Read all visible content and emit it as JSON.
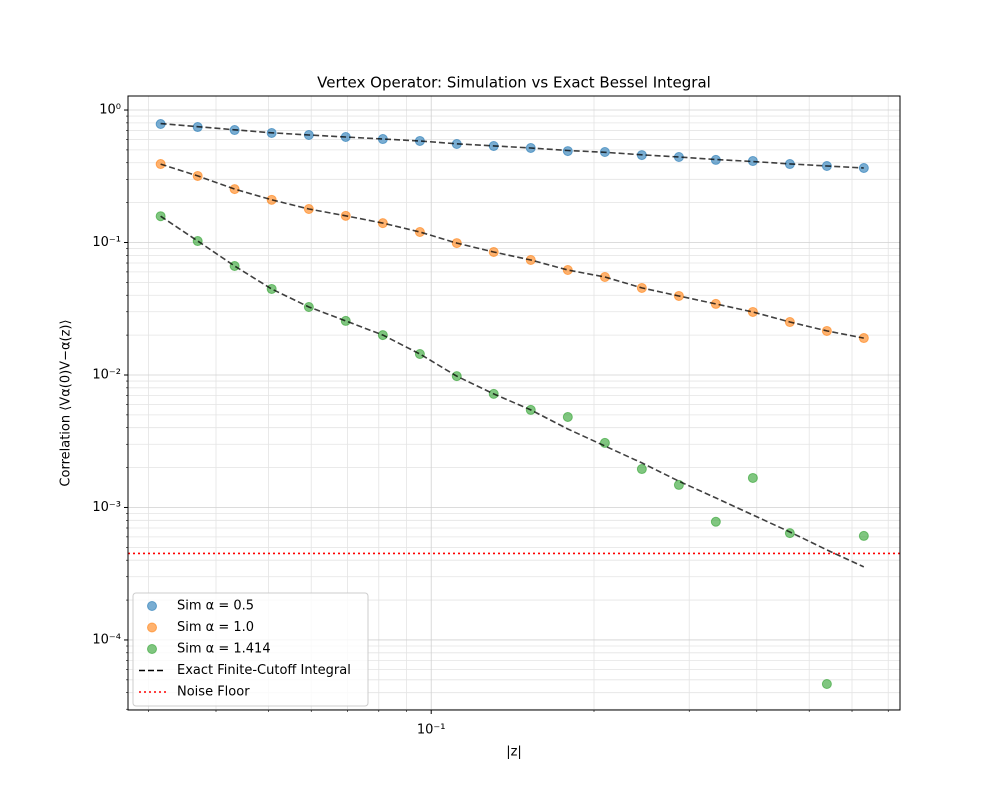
{
  "chart_data": {
    "type": "scatter",
    "title": "Vertex Operator: Simulation vs Exact Bessel Integral",
    "xlabel": "|z|",
    "ylabel": "Correlation ⟨Vα(0)V−α(z)⟩",
    "xscale": "log",
    "yscale": "log",
    "grid": true,
    "legend": "lower left",
    "xlim": [
      0.0275,
      0.736
    ],
    "ylim": [
      2.96e-05,
      1.276
    ],
    "xticks": [
      {
        "value": 0.1,
        "label": "10⁻¹"
      }
    ],
    "yticks": [
      {
        "value": 0.0001,
        "label": "10⁻⁴"
      },
      {
        "value": 0.001,
        "label": "10⁻³"
      },
      {
        "value": 0.01,
        "label": "10⁻²"
      },
      {
        "value": 0.1,
        "label": "10⁻¹"
      },
      {
        "value": 1,
        "label": "10⁰"
      }
    ],
    "xminorticks": [
      0.03,
      0.04,
      0.05,
      0.06,
      0.07,
      0.08,
      0.09,
      0.2,
      0.3,
      0.4,
      0.5,
      0.6,
      0.7
    ],
    "yminorticks": [
      3e-05,
      4e-05,
      5e-05,
      6e-05,
      7e-05,
      8e-05,
      9e-05,
      0.0002,
      0.0003,
      0.0004,
      0.0005,
      0.0006,
      0.0007,
      0.0008,
      0.0009,
      0.002,
      0.003,
      0.004,
      0.005,
      0.006,
      0.007,
      0.008,
      0.009,
      0.02,
      0.03,
      0.04,
      0.05,
      0.06,
      0.07,
      0.08,
      0.09,
      0.2,
      0.3,
      0.4,
      0.5,
      0.6,
      0.7,
      0.8,
      0.9
    ],
    "x": [
      0.0316,
      0.037,
      0.0433,
      0.0507,
      0.0594,
      0.0695,
      0.0814,
      0.0953,
      0.1115,
      0.1305,
      0.1528,
      0.1789,
      0.2095,
      0.2452,
      0.2871,
      0.336,
      0.3934,
      0.4605,
      0.5391,
      0.631
    ],
    "series": [
      {
        "name": "Sim α = 0.5",
        "color": "#1f77b4",
        "values": [
          0.784,
          0.744,
          0.706,
          0.671,
          0.648,
          0.626,
          0.604,
          0.584,
          0.554,
          0.535,
          0.517,
          0.49,
          0.482,
          0.457,
          0.442,
          0.42,
          0.412,
          0.391,
          0.378,
          0.365
        ]
      },
      {
        "name": "Sim α = 1.0",
        "color": "#ff7f0e",
        "values": [
          0.391,
          0.318,
          0.253,
          0.21,
          0.179,
          0.159,
          0.14,
          0.12,
          0.099,
          0.0848,
          0.0738,
          0.062,
          0.0549,
          0.0454,
          0.0395,
          0.0344,
          0.0299,
          0.0251,
          0.0215,
          0.019
        ]
      },
      {
        "name": "Sim α = 1.414",
        "color": "#2ca02c",
        "values": [
          0.158,
          0.1026,
          0.0665,
          0.0446,
          0.0326,
          0.0256,
          0.02,
          0.0144,
          0.0098,
          0.0072,
          0.00545,
          0.00482,
          0.00307,
          0.00195,
          0.00148,
          0.00078,
          0.00167,
          0.00064,
          4.65e-05,
          0.00061
        ]
      }
    ],
    "exact": {
      "name": "Exact Finite-Cutoff Integral",
      "color": "#000000",
      "lines": [
        [
          0.79,
          0.748,
          0.709,
          0.673,
          0.648,
          0.626,
          0.604,
          0.584,
          0.556,
          0.536,
          0.517,
          0.495,
          0.48,
          0.459,
          0.442,
          0.423,
          0.409,
          0.392,
          0.378,
          0.365
        ],
        [
          0.391,
          0.318,
          0.253,
          0.21,
          0.179,
          0.159,
          0.14,
          0.12,
          0.099,
          0.0848,
          0.0738,
          0.062,
          0.0549,
          0.0454,
          0.0395,
          0.0344,
          0.0299,
          0.0251,
          0.0215,
          0.019
        ],
        [
          0.158,
          0.1026,
          0.0665,
          0.0446,
          0.0326,
          0.0256,
          0.02,
          0.0144,
          0.0098,
          0.0072,
          0.00545,
          0.00391,
          0.00291,
          0.00217,
          0.00158,
          0.00118,
          0.000877,
          0.000653,
          0.000478,
          0.000356
        ]
      ]
    },
    "noise_floor": {
      "name": "Noise Floor",
      "value": 0.00045,
      "color": "#ff0000"
    }
  }
}
